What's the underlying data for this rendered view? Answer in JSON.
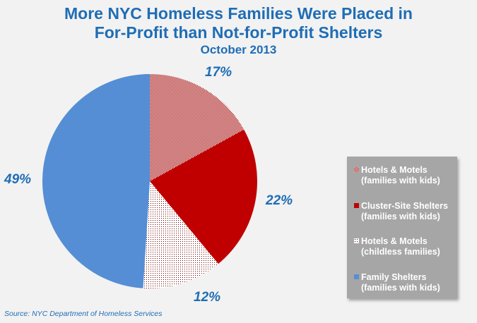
{
  "chart_data": {
    "type": "pie",
    "title": "More NYC Homeless Families Were Placed in For-Profit than Not-for-Profit Shelters",
    "title_lines": [
      "More NYC Homeless Families Were Placed in",
      "For-Profit than Not-for-Profit Shelters"
    ],
    "subtitle": "October 2013",
    "legend_position": "right",
    "slices": [
      {
        "label_line1": "Hotels & Motels",
        "label_line2": "(families with kids)",
        "value": 17,
        "display": "17%",
        "color": "#c00000",
        "pattern": "dense-check"
      },
      {
        "label_line1": "Cluster-Site Shelters",
        "label_line2": "(families with kids)",
        "value": 22,
        "display": "22%",
        "color": "#c00000",
        "pattern": "solid"
      },
      {
        "label_line1": "Hotels & Motels",
        "label_line2": "(childless families)",
        "value": 12,
        "display": "12%",
        "color": "#c00000",
        "pattern": "sparse-dots"
      },
      {
        "label_line1": "Family Shelters",
        "label_line2": "(families with kids)",
        "value": 49,
        "display": "49%",
        "color": "#558ed5",
        "pattern": "solid"
      }
    ],
    "source": "Source:  NYC Department of Homeless Services"
  }
}
